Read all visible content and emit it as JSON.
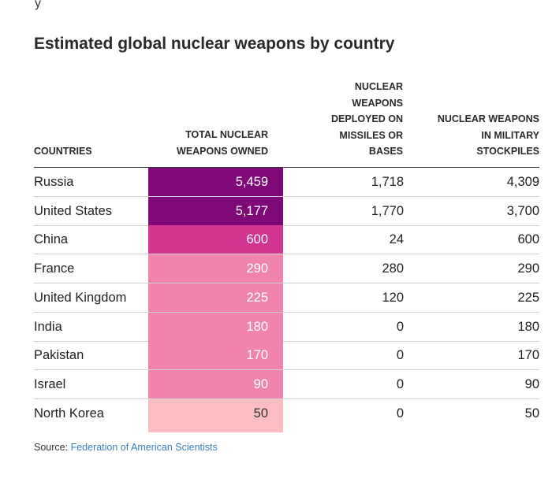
{
  "fragment": "y",
  "title": "Estimated global nuclear weapons by country",
  "headers": {
    "countries": "COUNTRIES",
    "total": "TOTAL NUCLEAR\nWEAPONS OWNED",
    "deployed": "NUCLEAR\nWEAPONS\nDEPLOYED ON\nMISSILES OR\nBASES",
    "stockpiles": "NUCLEAR WEAPONS\nIN MILITARY\nSTOCKPILES"
  },
  "source": {
    "label": "Source:",
    "link_text": "Federation of American Scientists"
  },
  "colors": {
    "darkest": "#7e0977",
    "dark": "#d1358f",
    "medium": "#f084ae",
    "light": "#fbbdc2",
    "link": "#3b7dc0"
  },
  "chart_data": {
    "type": "table",
    "title": "Estimated global nuclear weapons by country",
    "columns": [
      "COUNTRIES",
      "TOTAL NUCLEAR WEAPONS OWNED",
      "NUCLEAR WEAPONS DEPLOYED ON MISSILES OR BASES",
      "NUCLEAR WEAPONS IN MILITARY STOCKPILES"
    ],
    "rows": [
      {
        "country": "Russia",
        "total": "5,459",
        "deployed": "1,718",
        "stockpiles": "4,309",
        "shade": "#7e0977",
        "text_color": "#ffffff"
      },
      {
        "country": "United States",
        "total": "5,177",
        "deployed": "1,770",
        "stockpiles": "3,700",
        "shade": "#7e0977",
        "text_color": "#ffffff"
      },
      {
        "country": "China",
        "total": "600",
        "deployed": "24",
        "stockpiles": "600",
        "shade": "#d1358f",
        "text_color": "#ffffff"
      },
      {
        "country": "France",
        "total": "290",
        "deployed": "280",
        "stockpiles": "290",
        "shade": "#f084ae",
        "text_color": "#ffffff"
      },
      {
        "country": "United Kingdom",
        "total": "225",
        "deployed": "120",
        "stockpiles": "225",
        "shade": "#f084ae",
        "text_color": "#ffffff"
      },
      {
        "country": "India",
        "total": "180",
        "deployed": "0",
        "stockpiles": "180",
        "shade": "#f084ae",
        "text_color": "#ffffff"
      },
      {
        "country": "Pakistan",
        "total": "170",
        "deployed": "0",
        "stockpiles": "170",
        "shade": "#f084ae",
        "text_color": "#ffffff"
      },
      {
        "country": "Israel",
        "total": "90",
        "deployed": "0",
        "stockpiles": "90",
        "shade": "#f084ae",
        "text_color": "#ffffff"
      },
      {
        "country": "North Korea",
        "total": "50",
        "deployed": "0",
        "stockpiles": "50",
        "shade": "#fbbdc2",
        "text_color": "#333333"
      }
    ]
  }
}
